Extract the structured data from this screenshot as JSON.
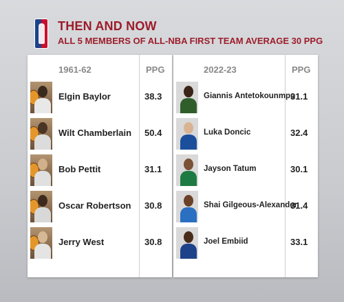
{
  "header": {
    "title": "THEN AND NOW",
    "subtitle": "ALL 5 MEMBERS OF ALL-NBA FIRST TEAM AVERAGE 30 PPG"
  },
  "left_table": {
    "season": "1961-62",
    "stat_header": "PPG",
    "rows": [
      {
        "name": "Elgin Baylor",
        "ppg": "38.3"
      },
      {
        "name": "Wilt Chamberlain",
        "ppg": "50.4"
      },
      {
        "name": "Bob Pettit",
        "ppg": "31.1"
      },
      {
        "name": "Oscar Robertson",
        "ppg": "30.8"
      },
      {
        "name": "Jerry West",
        "ppg": "30.8"
      }
    ]
  },
  "right_table": {
    "season": "2022-23",
    "stat_header": "PPG",
    "rows": [
      {
        "name": "Giannis Antetokounmpo",
        "ppg": "31.1"
      },
      {
        "name": "Luka Doncic",
        "ppg": "32.4"
      },
      {
        "name": "Jayson Tatum",
        "ppg": "30.1"
      },
      {
        "name": "Shai Gilgeous-Alexander",
        "ppg": "31.4"
      },
      {
        "name": "Joel Embiid",
        "ppg": "33.1"
      }
    ]
  },
  "colors": {
    "title_red": "#9c1c2a",
    "jersey_colors": [
      "#2f5e2a",
      "#1b4f9c",
      "#1e7a43",
      "#2a6fc2",
      "#1d428a"
    ]
  }
}
